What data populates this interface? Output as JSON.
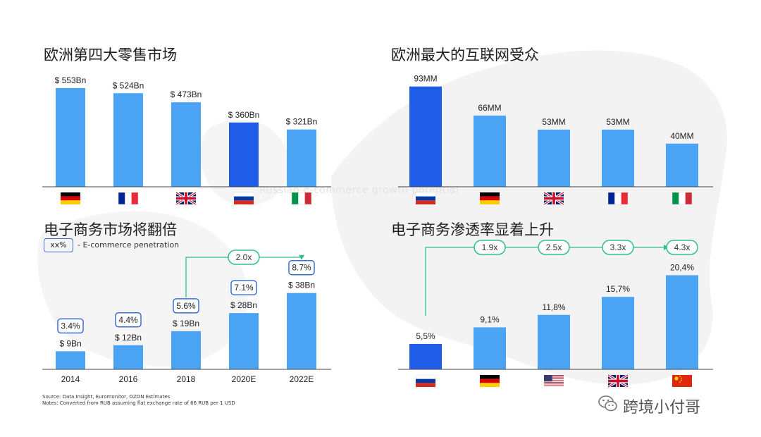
{
  "colors": {
    "bar": "#4aa3f3",
    "highlight": "#1f5ce8",
    "growth": "#2fbf8f",
    "pill_border": "#3b6fd6",
    "axis": "#444444"
  },
  "overlay_text": "Russian e-commerce growth potential",
  "legend": {
    "box": "xx%",
    "label": "- E-commerce penetration"
  },
  "source_lines": [
    "Source: Data Insight, Euromonitor, OZON Estimates",
    "Notes: Converted from RUB assuming flat exchange rate of 66 RUB per 1 USD"
  ],
  "watermark": {
    "text": "跨境小付哥",
    "icon": "wechat-icon"
  },
  "chart_data": [
    {
      "type": "bar",
      "title": "欧洲第四大零售市场",
      "categories": [
        "Germany",
        "France",
        "UK",
        "Russia",
        "Italy"
      ],
      "category_icons": [
        "flag-de",
        "flag-fr",
        "flag-uk",
        "flag-ru",
        "flag-it"
      ],
      "values": [
        553,
        524,
        473,
        360,
        321
      ],
      "labels": [
        "$ 553Bn",
        "$ 524Bn",
        "$ 473Bn",
        "$ 360Bn",
        "$ 321Bn"
      ],
      "highlight_index": 3,
      "ylim": [
        0,
        600
      ]
    },
    {
      "type": "bar",
      "title": "欧洲最大的互联网受众",
      "categories": [
        "Russia",
        "Germany",
        "UK",
        "France",
        "Italy"
      ],
      "category_icons": [
        "flag-ru",
        "flag-de",
        "flag-uk",
        "flag-fr",
        "flag-it"
      ],
      "values": [
        93,
        66,
        53,
        53,
        40
      ],
      "labels": [
        "93MM",
        "66MM",
        "53MM",
        "53MM",
        "40MM"
      ],
      "highlight_index": 0,
      "ylim": [
        0,
        100
      ]
    },
    {
      "type": "bar",
      "title": "电子商务市场将翻倍",
      "categories": [
        "2014",
        "2016",
        "2018",
        "2020E",
        "2022E"
      ],
      "values": [
        9,
        12,
        19,
        28,
        38
      ],
      "labels": [
        "$ 9Bn",
        "$ 12Bn",
        "$ 19Bn",
        "$ 28Bn",
        "$ 38Bn"
      ],
      "penetration": [
        "3.4%",
        "4.4%",
        "5.6%",
        "7.1%",
        "8.7%"
      ],
      "growth": {
        "from_index": 2,
        "to_index": 4,
        "label": "2.0x"
      },
      "highlight_index": -1,
      "ylim": [
        0,
        40
      ]
    },
    {
      "type": "bar",
      "title": "电子商务渗透率显着上升",
      "categories": [
        "Russia",
        "Germany",
        "USA",
        "UK",
        "China"
      ],
      "category_icons": [
        "flag-ru",
        "flag-de",
        "flag-us",
        "flag-uk",
        "flag-cn"
      ],
      "values": [
        5.5,
        9.1,
        11.8,
        15.7,
        20.4
      ],
      "labels": [
        "5,5%",
        "9,1%",
        "11,8%",
        "15,7%",
        "20,4%"
      ],
      "multipliers": [
        "1.9x",
        "2.5x",
        "3.3x",
        "4.3x"
      ],
      "highlight_index": 0,
      "ylim": [
        0,
        22
      ]
    }
  ]
}
